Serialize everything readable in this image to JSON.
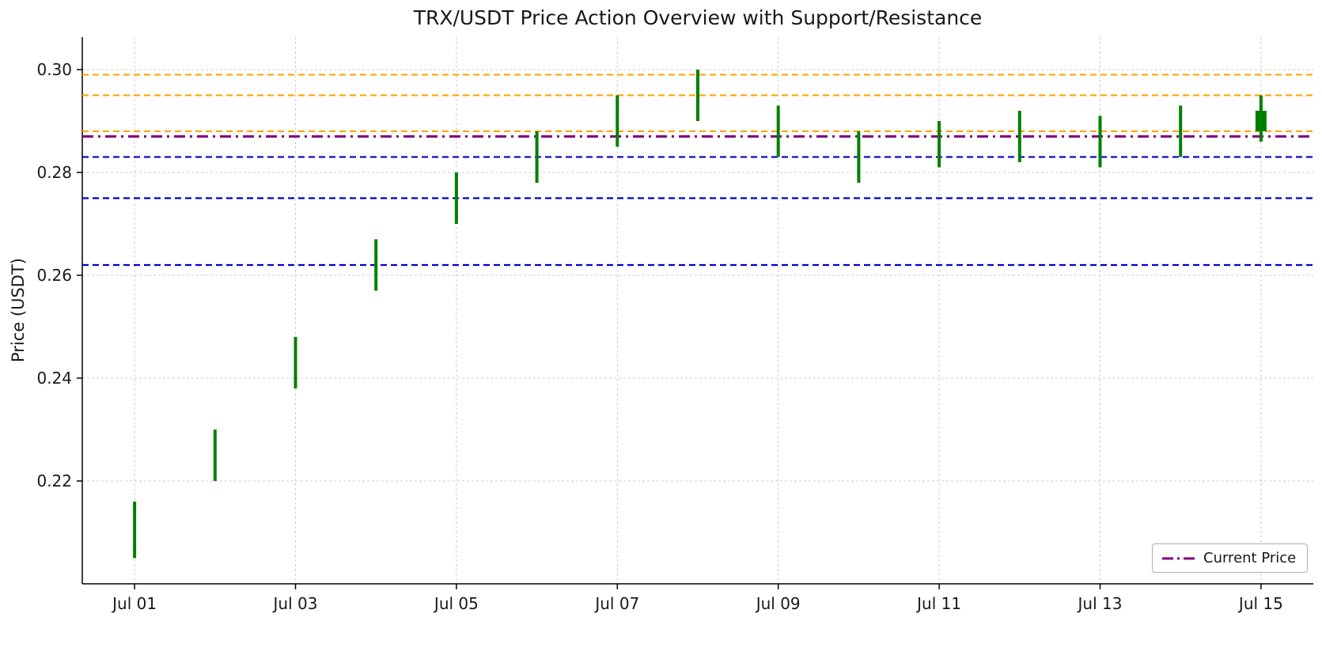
{
  "figure": {
    "title": "TRX/USDT Price Action Overview with Support/Resistance",
    "ylabel": "Price (USDT)",
    "legend_label": "Current Price"
  },
  "chart_data": {
    "type": "candlestick",
    "title": "TRX/USDT Price Action Overview with Support/Resistance",
    "xlabel": "",
    "ylabel": "Price (USDT)",
    "x_tick_labels": [
      "Jul 01",
      "Jul 03",
      "Jul 05",
      "Jul 07",
      "Jul 09",
      "Jul 11",
      "Jul 13",
      "Jul 15"
    ],
    "x_tick_days": [
      1,
      3,
      5,
      7,
      9,
      11,
      13,
      15
    ],
    "y_ticks": [
      0.22,
      0.24,
      0.26,
      0.28,
      0.3
    ],
    "y_tick_labels": [
      "0.22",
      "0.24",
      "0.26",
      "0.28",
      "0.30"
    ],
    "ylim": [
      0.2,
      0.3063
    ],
    "xlim_days": [
      0.35,
      15.65
    ],
    "grid": true,
    "legend": {
      "label": "Current Price",
      "position": "lower right"
    },
    "candles": [
      {
        "date": "Jul 01",
        "day": 1,
        "low": 0.205,
        "high": 0.216
      },
      {
        "date": "Jul 02",
        "day": 2,
        "low": 0.22,
        "high": 0.23
      },
      {
        "date": "Jul 03",
        "day": 3,
        "low": 0.238,
        "high": 0.248
      },
      {
        "date": "Jul 04",
        "day": 4,
        "low": 0.257,
        "high": 0.267
      },
      {
        "date": "Jul 05",
        "day": 5,
        "low": 0.27,
        "high": 0.28
      },
      {
        "date": "Jul 06",
        "day": 6,
        "low": 0.278,
        "high": 0.288
      },
      {
        "date": "Jul 07",
        "day": 7,
        "low": 0.285,
        "high": 0.295
      },
      {
        "date": "Jul 08",
        "day": 8,
        "low": 0.29,
        "high": 0.3
      },
      {
        "date": "Jul 09",
        "day": 9,
        "low": 0.283,
        "high": 0.293
      },
      {
        "date": "Jul 10",
        "day": 10,
        "low": 0.278,
        "high": 0.288
      },
      {
        "date": "Jul 11",
        "day": 11,
        "low": 0.281,
        "high": 0.29
      },
      {
        "date": "Jul 12",
        "day": 12,
        "low": 0.282,
        "high": 0.292
      },
      {
        "date": "Jul 13",
        "day": 13,
        "low": 0.281,
        "high": 0.291
      },
      {
        "date": "Jul 14",
        "day": 14,
        "low": 0.283,
        "high": 0.293
      },
      {
        "date": "Jul 15",
        "day": 15,
        "low": 0.286,
        "high": 0.295,
        "open": 0.288,
        "close": 0.292
      }
    ],
    "resistance_levels": [
      0.288,
      0.295,
      0.299
    ],
    "support_levels": [
      0.262,
      0.275,
      0.283
    ],
    "current_price": 0.287,
    "colors": {
      "candle": "#008000",
      "resistance": "#ffa500",
      "support": "#0000cd",
      "current_price": "#800080",
      "grid": "#cccccc",
      "axis": "#000000",
      "text": "#191919"
    }
  }
}
